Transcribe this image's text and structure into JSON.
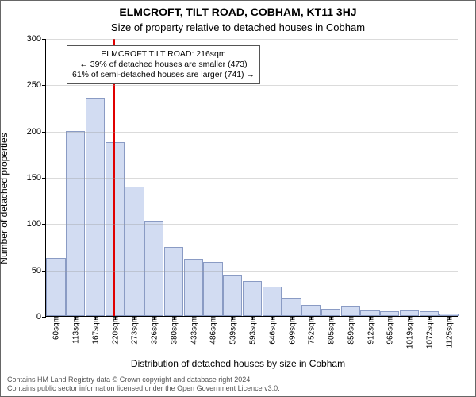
{
  "chart": {
    "type": "histogram",
    "title": "ELMCROFT, TILT ROAD, COBHAM, KT11 3HJ",
    "subtitle": "Size of property relative to detached houses in Cobham",
    "ylabel": "Number of detached properties",
    "xlabel": "Distribution of detached houses by size in Cobham",
    "ylim": [
      0,
      300
    ],
    "ytick_step": 50,
    "yticks": [
      0,
      50,
      100,
      150,
      200,
      250,
      300
    ],
    "x_categories": [
      "60sqm",
      "113sqm",
      "167sqm",
      "220sqm",
      "273sqm",
      "326sqm",
      "380sqm",
      "433sqm",
      "486sqm",
      "539sqm",
      "593sqm",
      "646sqm",
      "699sqm",
      "752sqm",
      "805sqm",
      "859sqm",
      "912sqm",
      "965sqm",
      "1019sqm",
      "1072sqm",
      "1125sqm"
    ],
    "values": [
      63,
      200,
      235,
      188,
      140,
      103,
      75,
      62,
      58,
      45,
      38,
      32,
      20,
      12,
      8,
      10,
      6,
      5,
      6,
      5,
      3
    ],
    "bar_fill": "#d2dcf2",
    "bar_stroke": "#8a9bc4",
    "grid_color": "#999999",
    "background_color": "#ffffff",
    "title_fontsize": 14,
    "subtitle_fontsize": 13,
    "label_fontsize": 12,
    "tick_fontsize": 11,
    "reference_line": {
      "x_value_sqm": 216,
      "color": "#e00000"
    },
    "annotation": {
      "line1": "ELMCROFT TILT ROAD: 216sqm",
      "line2": "← 39% of detached houses are smaller (473)",
      "line3": "61% of semi-detached houses are larger (741) →"
    },
    "footer": {
      "line1": "Contains HM Land Registry data © Crown copyright and database right 2024.",
      "line2": "Contains public sector information licensed under the Open Government Licence v3.0."
    }
  }
}
